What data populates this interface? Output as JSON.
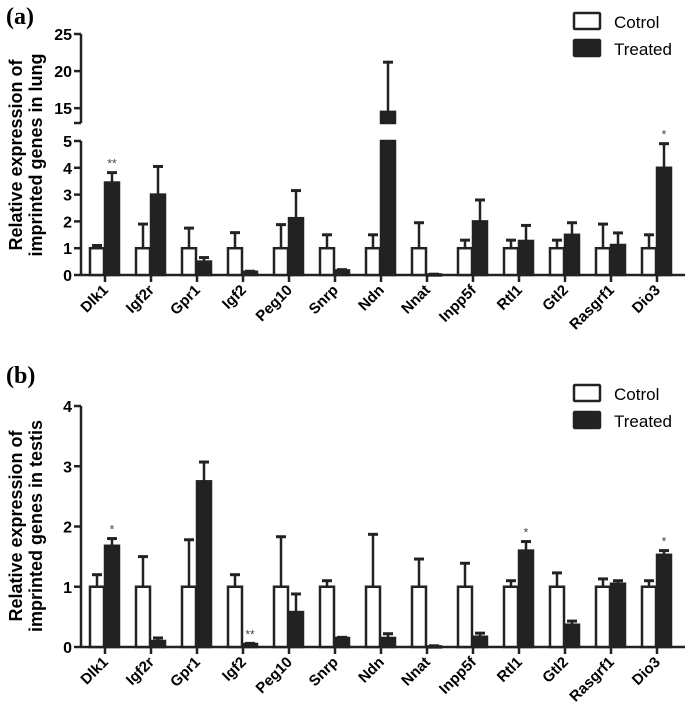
{
  "chart_data": [
    {
      "type": "bar",
      "panel_label": "(a)",
      "ylabel_lines": [
        "Relative expression of",
        "imprinted genes in lung"
      ],
      "categories": [
        "Dlk1",
        "Igf2r",
        "Gpr1",
        "Igf2",
        "Peg10",
        "Snrp",
        "Ndn",
        "Nnat",
        "Inpp5f",
        "Rtl1",
        "Gtl2",
        "Rasgrf1",
        "Dio3"
      ],
      "axis_break": {
        "lower": [
          0,
          5
        ],
        "upper": [
          13,
          25
        ]
      },
      "yticks_lower": [
        "0",
        "1",
        "2",
        "3",
        "4",
        "5"
      ],
      "yticks_upper": [
        "15",
        "20",
        "25"
      ],
      "legend_position": "top-right",
      "series": [
        {
          "name": "Cotrol",
          "values": [
            1,
            1,
            1,
            1,
            1,
            1,
            1,
            1,
            1,
            1,
            1,
            1,
            1
          ],
          "error_upper": [
            1.1,
            1.9,
            1.75,
            1.58,
            1.88,
            1.5,
            1.5,
            1.95,
            1.3,
            1.3,
            1.3,
            1.9,
            1.5
          ]
        },
        {
          "name": "Treated",
          "values": [
            3.45,
            3.0,
            0.5,
            0.12,
            2.12,
            0.17,
            14.5,
            0.02,
            2.0,
            1.27,
            1.5,
            1.12,
            4.0
          ],
          "error_upper": [
            3.82,
            4.05,
            0.65,
            0.14,
            3.15,
            0.2,
            21.2,
            0.03,
            2.8,
            1.85,
            1.95,
            1.57,
            4.9
          ]
        }
      ],
      "significance": [
        "**",
        "",
        "",
        "",
        "",
        "",
        "",
        "",
        "",
        "",
        "",
        "",
        "*"
      ],
      "colors": {
        "control_fill": "#ffffff",
        "treated_fill": "#222222",
        "stroke": "#222222"
      }
    },
    {
      "type": "bar",
      "panel_label": "(b)",
      "ylabel_lines": [
        "Relative expression of",
        "imprinted genes in testis"
      ],
      "categories": [
        "Dlk1",
        "Igf2r",
        "Gpr1",
        "Igf2",
        "Peg10",
        "Snrp",
        "Ndn",
        "Nnat",
        "Inpp5f",
        "Rtl1",
        "Gtl2",
        "Rasgrf1",
        "Dio3"
      ],
      "ylim": [
        0,
        4
      ],
      "yticks": [
        "0",
        "1",
        "2",
        "3",
        "4"
      ],
      "legend_position": "top-right",
      "series": [
        {
          "name": "Cotrol",
          "values": [
            1,
            1,
            1,
            1,
            1,
            1,
            1,
            1,
            1,
            1,
            1,
            1,
            1
          ],
          "error_upper": [
            1.2,
            1.5,
            1.78,
            1.2,
            1.83,
            1.1,
            1.87,
            1.46,
            1.39,
            1.1,
            1.23,
            1.13,
            1.1
          ]
        },
        {
          "name": "Treated",
          "values": [
            1.68,
            0.1,
            2.75,
            0.05,
            0.58,
            0.15,
            0.15,
            0.01,
            0.17,
            1.6,
            0.37,
            1.05,
            1.53
          ],
          "error_upper": [
            1.8,
            0.15,
            3.07,
            0.06,
            0.88,
            0.16,
            0.22,
            0.02,
            0.23,
            1.75,
            0.43,
            1.1,
            1.6
          ]
        }
      ],
      "significance": [
        "*",
        "",
        "",
        "**",
        "",
        "",
        "",
        "",
        "",
        "*",
        "",
        "",
        "*"
      ],
      "colors": {
        "control_fill": "#ffffff",
        "treated_fill": "#222222",
        "stroke": "#222222"
      }
    }
  ]
}
